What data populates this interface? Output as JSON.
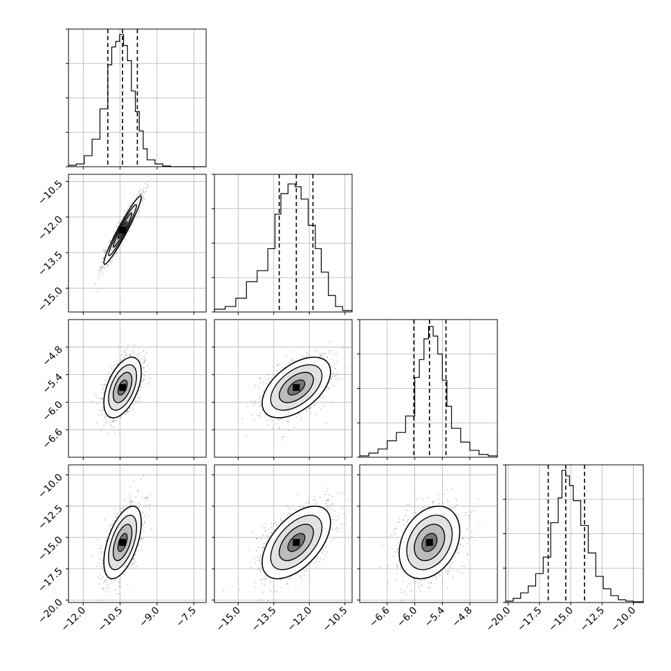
{
  "chart_data": {
    "type": "corner",
    "n_parameters": 4,
    "parameters": [
      {
        "index": 0,
        "range": [
          -12.6,
          -7.0
        ],
        "hist_ticks": [
          "−12.0",
          "−10.5",
          "−9.0",
          "−7.5"
        ]
      },
      {
        "index": 1,
        "range": [
          -16.0,
          -10.2
        ],
        "ticks": [
          "−10.5",
          "−12.0",
          "−13.5",
          "−15.0"
        ],
        "hist_ticks": [
          "−15.0",
          "−13.5",
          "−12.0",
          "−10.5"
        ]
      },
      {
        "index": 2,
        "range": [
          -7.2,
          -4.2
        ],
        "ticks": [
          "−4.8",
          "−5.4",
          "−6.0",
          "−6.6"
        ],
        "hist_ticks": [
          "−6.6",
          "−6.0",
          "−5.4",
          "−4.8"
        ]
      },
      {
        "index": 3,
        "range": [
          -20.2,
          -9.2
        ],
        "ticks": [
          "−10.0",
          "−12.5",
          "−15.0",
          "−17.5",
          "−20.0"
        ],
        "hist_ticks": [
          "−20.0",
          "−17.5",
          "−15.0",
          "−12.5",
          "−10.0"
        ]
      }
    ],
    "histograms": [
      {
        "param": 0,
        "quantiles": [
          -11.0,
          -10.4,
          -9.8
        ],
        "edges": [
          -12.6,
          -12.28,
          -11.96,
          -11.64,
          -11.32,
          -11.0,
          -10.84,
          -10.68,
          -10.52,
          -10.36,
          -10.2,
          -10.04,
          -9.88,
          -9.72,
          -9.56,
          -9.4,
          -9.08,
          -8.76,
          -8.44,
          -7.0
        ],
        "counts": [
          0.01,
          0.02,
          0.08,
          0.2,
          0.42,
          0.74,
          0.87,
          0.91,
          0.96,
          0.88,
          0.77,
          0.55,
          0.4,
          0.26,
          0.13,
          0.05,
          0.02,
          0.005,
          0.0
        ]
      },
      {
        "param": 1,
        "quantiles": [
          -13.27,
          -12.55,
          -11.85
        ],
        "edges": [
          -16.0,
          -15.55,
          -15.1,
          -14.65,
          -14.2,
          -13.75,
          -13.45,
          -13.2,
          -12.9,
          -12.6,
          -12.35,
          -12.05,
          -11.75,
          -11.5,
          -11.2,
          -10.9,
          -10.6,
          -10.2
        ],
        "counts": [
          0.02,
          0.04,
          0.1,
          0.22,
          0.3,
          0.46,
          0.71,
          0.86,
          0.93,
          0.91,
          0.82,
          0.63,
          0.46,
          0.29,
          0.12,
          0.04,
          0.01
        ]
      },
      {
        "param": 2,
        "quantiles": [
          -6.02,
          -5.68,
          -5.32
        ],
        "edges": [
          -7.2,
          -7.0,
          -6.8,
          -6.6,
          -6.4,
          -6.2,
          -6.0,
          -5.9,
          -5.8,
          -5.7,
          -5.6,
          -5.5,
          -5.4,
          -5.3,
          -5.2,
          -5.0,
          -4.8,
          -4.6,
          -4.4,
          -4.2
        ],
        "counts": [
          0.01,
          0.03,
          0.06,
          0.12,
          0.18,
          0.3,
          0.58,
          0.71,
          0.86,
          0.95,
          0.88,
          0.75,
          0.56,
          0.37,
          0.21,
          0.11,
          0.05,
          0.02,
          0.01
        ]
      },
      {
        "param": 3,
        "quantiles": [
          -16.8,
          -15.4,
          -13.9
        ],
        "edges": [
          -20.2,
          -19.6,
          -19.0,
          -18.4,
          -17.8,
          -17.2,
          -16.6,
          -16.0,
          -15.7,
          -15.4,
          -15.1,
          -14.8,
          -14.2,
          -13.6,
          -13.0,
          -12.4,
          -11.8,
          -11.2,
          -10.6,
          -10.0,
          -9.2
        ],
        "counts": [
          0.01,
          0.03,
          0.07,
          0.12,
          0.21,
          0.33,
          0.58,
          0.76,
          0.96,
          0.92,
          0.85,
          0.74,
          0.56,
          0.36,
          0.19,
          0.1,
          0.05,
          0.02,
          0.01,
          0.005
        ]
      }
    ],
    "pairs": [
      {
        "x": 0,
        "y": 1,
        "center": [
          -10.4,
          -12.55
        ],
        "sigma": [
          0.38,
          0.72
        ],
        "rho": 0.96
      },
      {
        "x": 0,
        "y": 2,
        "center": [
          -10.4,
          -5.68
        ],
        "sigma": [
          0.38,
          0.33
        ],
        "rho": 0.5
      },
      {
        "x": 1,
        "y": 2,
        "center": [
          -12.55,
          -5.68
        ],
        "sigma": [
          0.72,
          0.33
        ],
        "rho": 0.52
      },
      {
        "x": 0,
        "y": 3,
        "center": [
          -10.4,
          -15.4
        ],
        "sigma": [
          0.38,
          1.45
        ],
        "rho": 0.55
      },
      {
        "x": 1,
        "y": 3,
        "center": [
          -12.55,
          -15.4
        ],
        "sigma": [
          0.72,
          1.45
        ],
        "rho": 0.55
      },
      {
        "x": 2,
        "y": 3,
        "center": [
          -5.68,
          -15.4
        ],
        "sigma": [
          0.33,
          1.45
        ],
        "rho": 0.3
      }
    ],
    "grid": true
  }
}
